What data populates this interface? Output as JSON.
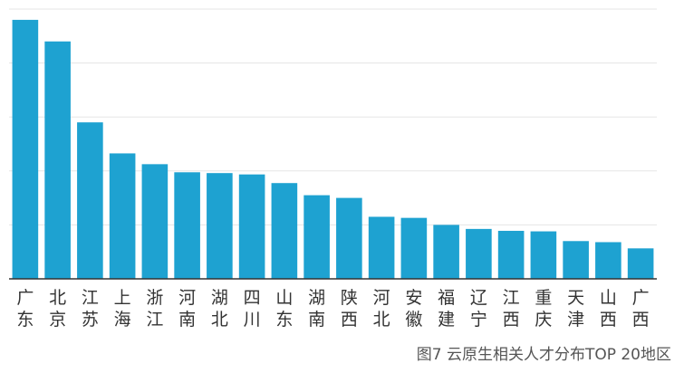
{
  "chart_data": {
    "type": "bar",
    "title": "",
    "xlabel": "",
    "ylabel": "",
    "categories": [
      "广东",
      "北京",
      "江苏",
      "上海",
      "浙江",
      "河南",
      "湖北",
      "四川",
      "山东",
      "湖南",
      "陕西",
      "河北",
      "安徽",
      "福建",
      "辽宁",
      "江西",
      "重庆",
      "天津",
      "山西",
      "广西"
    ],
    "values": [
      96,
      88,
      58,
      46.5,
      42.5,
      39.5,
      39.2,
      38.7,
      35.5,
      31,
      30,
      23,
      22.6,
      20,
      18.5,
      17.8,
      17.6,
      14,
      13.6,
      11.3
    ],
    "ylim": [
      0,
      100
    ],
    "grid": true,
    "legend": "none",
    "bar_color": "#1ea2d1",
    "grid_color": "#e5e5e5",
    "axis_color": "#333333"
  },
  "caption": "图7 云原生相关人才分布TOP 20地区"
}
